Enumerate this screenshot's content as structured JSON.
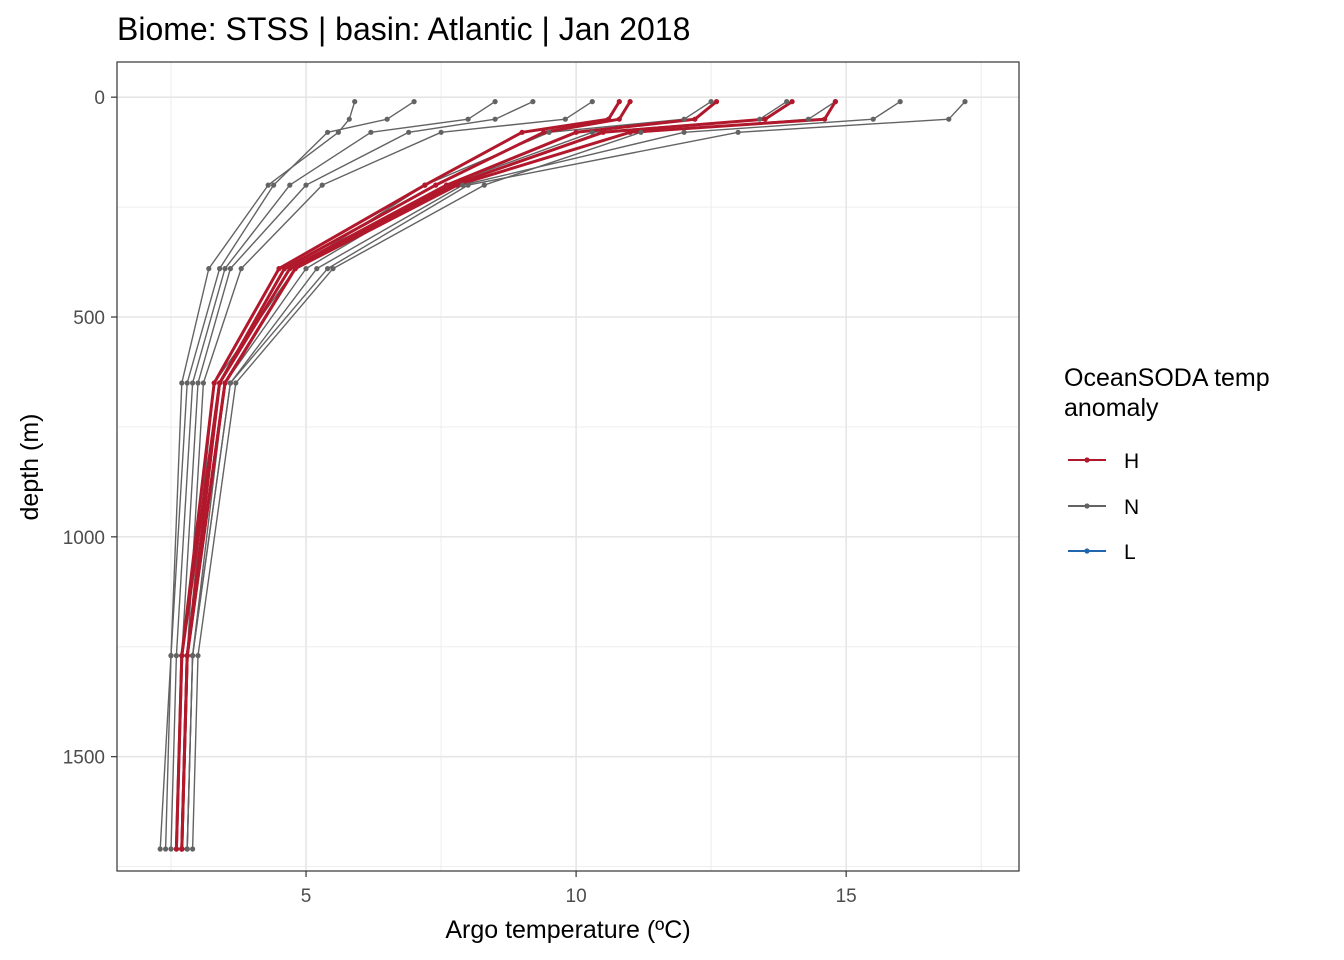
{
  "chart_data": {
    "type": "line",
    "title": "Biome: STSS | basin: Atlantic  | Jan 2018",
    "xlabel": "Argo temperature (ºC)",
    "ylabel": "depth (m)",
    "xlim": [
      1.5,
      18.2
    ],
    "ylim": [
      1760,
      -80
    ],
    "y_reversed": true,
    "xticks": [
      5,
      10,
      15
    ],
    "yticks": [
      0,
      500,
      1000,
      1500
    ],
    "grid": true,
    "legend_position": "right",
    "legend": {
      "title_line1": "OceanSODA temp",
      "title_line2": "anomaly",
      "entries": [
        {
          "label": "H",
          "color": "#b2182b"
        },
        {
          "label": "N",
          "color": "#636363"
        },
        {
          "label": "L",
          "color": "#2166ac"
        }
      ]
    },
    "series": [
      {
        "group": "N",
        "x": [
          5.9,
          5.8,
          5.6,
          4.3,
          3.2,
          2.7,
          2.5,
          2.3
        ],
        "y": [
          10,
          50,
          80,
          200,
          390,
          650,
          1270,
          1710
        ]
      },
      {
        "group": "N",
        "x": [
          7.0,
          6.5,
          5.4,
          4.4,
          3.4,
          2.8,
          2.5,
          2.4
        ],
        "y": [
          10,
          50,
          80,
          200,
          390,
          650,
          1270,
          1710
        ]
      },
      {
        "group": "N",
        "x": [
          8.5,
          8.0,
          6.2,
          4.7,
          3.5,
          2.9,
          2.6,
          2.5
        ],
        "y": [
          10,
          50,
          80,
          200,
          390,
          650,
          1270,
          1710
        ]
      },
      {
        "group": "N",
        "x": [
          9.2,
          8.5,
          6.9,
          5.0,
          3.6,
          3.0,
          2.7,
          2.6
        ],
        "y": [
          10,
          50,
          80,
          200,
          390,
          650,
          1270,
          1710
        ]
      },
      {
        "group": "N",
        "x": [
          10.3,
          9.8,
          7.5,
          5.3,
          3.8,
          3.1,
          2.8,
          2.7
        ],
        "y": [
          10,
          50,
          80,
          200,
          390,
          650,
          1270,
          1710
        ]
      },
      {
        "group": "N",
        "x": [
          12.5,
          12.0,
          9.5,
          7.2,
          4.8,
          3.3,
          2.8,
          2.7
        ],
        "y": [
          10,
          50,
          80,
          200,
          390,
          650,
          1270,
          1710
        ]
      },
      {
        "group": "N",
        "x": [
          13.9,
          13.4,
          10.3,
          7.6,
          5.0,
          3.5,
          2.9,
          2.8
        ],
        "y": [
          10,
          50,
          80,
          200,
          390,
          650,
          1270,
          1710
        ]
      },
      {
        "group": "N",
        "x": [
          14.8,
          14.3,
          11.2,
          8.3,
          5.5,
          3.7,
          3.0,
          2.9
        ],
        "y": [
          10,
          50,
          80,
          200,
          390,
          650,
          1270,
          1710
        ]
      },
      {
        "group": "N",
        "x": [
          16.0,
          15.5,
          12.0,
          7.9,
          5.2,
          3.6,
          2.9,
          2.8
        ],
        "y": [
          10,
          50,
          80,
          200,
          390,
          650,
          1270,
          1710
        ]
      },
      {
        "group": "N",
        "x": [
          17.2,
          16.9,
          13.0,
          8.0,
          5.4,
          3.6,
          2.9,
          2.8
        ],
        "y": [
          10,
          50,
          80,
          200,
          390,
          650,
          1270,
          1710
        ]
      },
      {
        "group": "H",
        "x": [
          10.8,
          10.6,
          9.0,
          7.2,
          4.5,
          3.3,
          2.7,
          2.6
        ],
        "y": [
          10,
          50,
          80,
          200,
          390,
          650,
          1270,
          1710
        ]
      },
      {
        "group": "H",
        "x": [
          11.0,
          10.8,
          9.4,
          7.4,
          4.6,
          3.4,
          2.7,
          2.6
        ],
        "y": [
          10,
          50,
          80,
          200,
          390,
          650,
          1270,
          1710
        ]
      },
      {
        "group": "H",
        "x": [
          12.6,
          12.2,
          10.0,
          7.6,
          4.7,
          3.4,
          2.8,
          2.7
        ],
        "y": [
          10,
          50,
          80,
          200,
          390,
          650,
          1270,
          1710
        ]
      },
      {
        "group": "H",
        "x": [
          14.0,
          13.5,
          10.5,
          7.7,
          4.8,
          3.5,
          2.8,
          2.7
        ],
        "y": [
          10,
          50,
          80,
          200,
          390,
          650,
          1270,
          1710
        ]
      },
      {
        "group": "H",
        "x": [
          14.8,
          14.6,
          11.0,
          7.8,
          4.8,
          3.5,
          2.8,
          2.7
        ],
        "y": [
          10,
          50,
          80,
          200,
          390,
          650,
          1270,
          1710
        ]
      }
    ]
  }
}
